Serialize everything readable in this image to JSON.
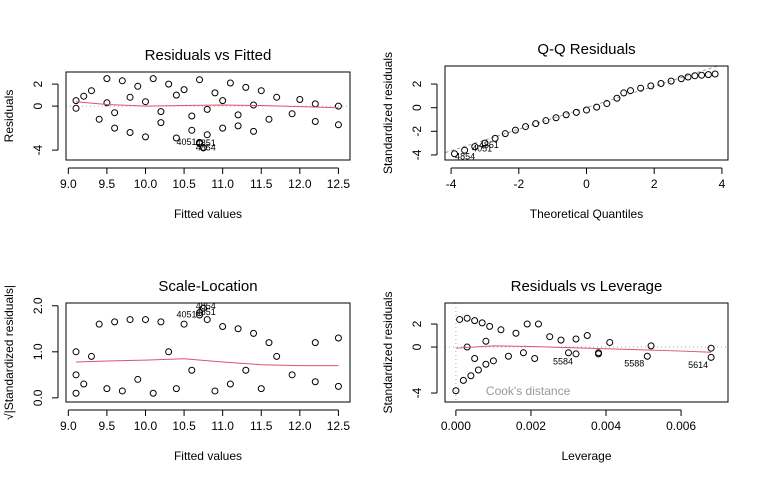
{
  "chart_data": [
    {
      "type": "scatter",
      "title": "Residuals vs Fitted",
      "xlabel": "Fitted values",
      "ylabel": "Residuals",
      "xlim": [
        8.97,
        12.65
      ],
      "ylim": [
        -4.9,
        3.1
      ],
      "xticks": [
        {
          "value": 9,
          "label": "9.0"
        },
        9.5,
        {
          "value": 10,
          "label": "10.0"
        },
        10.5,
        {
          "value": 11,
          "label": "11.0"
        },
        11.5,
        {
          "value": 12,
          "label": "12.0"
        },
        12.5
      ],
      "yticks": [
        -4,
        0,
        2
      ],
      "hline": 0,
      "points": {
        "x": [
          9.1,
          9.1,
          9.2,
          9.3,
          9.4,
          9.5,
          9.6,
          9.7,
          9.8,
          9.9,
          10.0,
          10.1,
          10.2,
          10.3,
          10.4,
          10.5,
          10.6,
          10.7,
          10.8,
          10.9,
          11.0,
          11.1,
          11.2,
          11.3,
          11.4,
          11.5,
          11.6,
          11.7,
          11.9,
          12.0,
          12.2,
          12.2,
          12.5,
          12.5,
          9.5,
          9.8,
          10.2,
          10.6,
          11.0,
          11.4,
          9.6,
          10.0,
          10.4,
          10.8,
          11.2,
          10.7,
          10.7,
          10.75
        ],
        "y": [
          0.5,
          -0.2,
          0.9,
          1.4,
          -1.2,
          2.5,
          -2.0,
          2.3,
          -2.4,
          1.8,
          -2.8,
          2.5,
          -1.5,
          2.0,
          -2.9,
          1.5,
          -2.2,
          2.4,
          -2.6,
          1.2,
          -2.0,
          2.1,
          -1.8,
          1.7,
          -2.3,
          1.4,
          -1.2,
          0.8,
          -0.7,
          0.6,
          0.2,
          -1.4,
          0.0,
          -1.7,
          0.3,
          0.8,
          -0.5,
          -0.9,
          0.5,
          0.1,
          -0.6,
          0.4,
          1.0,
          -0.3,
          -0.8,
          -3.3,
          -3.4,
          -3.8
        ]
      },
      "smooth": {
        "color": "#DF536B",
        "x": [
          9.1,
          9.5,
          10.0,
          10.5,
          11.0,
          11.5,
          12.0,
          12.5
        ],
        "y": [
          0.4,
          0.15,
          0.0,
          0.05,
          0.1,
          0.05,
          -0.05,
          -0.15
        ]
      },
      "point_labels": [
        {
          "text": "4051",
          "x": 10.7,
          "y": -3.3
        },
        {
          "text": "4851",
          "x": 10.95,
          "y": -3.4
        },
        {
          "text": "4854",
          "x": 10.95,
          "y": -3.8
        }
      ]
    },
    {
      "type": "scatter",
      "title": "Q-Q Residuals",
      "xlabel": "Theoretical Quantiles",
      "ylabel": "Standardized residuals",
      "xlim": [
        -4.18,
        4.18
      ],
      "ylim": [
        -4.43,
        3.53
      ],
      "xticks": [
        -4,
        -2,
        0,
        2,
        4
      ],
      "yticks": [
        -4,
        -2,
        0,
        2
      ],
      "reference_line": {
        "color": "#999999",
        "x": [
          -4.5,
          4.5
        ],
        "y": [
          -4.1,
          4.1
        ]
      },
      "points": {
        "x": [
          -3.9,
          -3.6,
          -3.3,
          -3.0,
          -2.7,
          -2.4,
          -2.1,
          -1.8,
          -1.5,
          -1.2,
          -0.9,
          -0.6,
          -0.3,
          0.0,
          0.3,
          0.6,
          0.9,
          1.1,
          1.3,
          1.6,
          1.9,
          2.2,
          2.5,
          2.8,
          3.0,
          3.2,
          3.4,
          3.6,
          3.8
        ],
        "y": [
          -3.9,
          -3.6,
          -3.3,
          -3.0,
          -2.6,
          -2.2,
          -1.9,
          -1.6,
          -1.35,
          -1.1,
          -0.85,
          -0.6,
          -0.4,
          -0.2,
          0.05,
          0.35,
          0.8,
          1.25,
          1.45,
          1.65,
          1.85,
          2.05,
          2.25,
          2.45,
          2.6,
          2.7,
          2.75,
          2.8,
          2.85
        ]
      },
      "point_labels": [
        {
          "text": "4854",
          "x": -3.2,
          "y": -4.2
        },
        {
          "text": "4051",
          "x": -2.7,
          "y": -3.5
        },
        {
          "text": "4851",
          "x": -2.5,
          "y": -3.2
        }
      ]
    },
    {
      "type": "scatter",
      "title": "Scale-Location",
      "xlabel": "Fitted values",
      "ylabel": "√|Standardized residuals|",
      "xlim": [
        8.97,
        12.65
      ],
      "ylim": [
        -0.09,
        2.06
      ],
      "xticks": [
        {
          "value": 9,
          "label": "9.0"
        },
        9.5,
        {
          "value": 10,
          "label": "10.0"
        },
        10.5,
        {
          "value": 11,
          "label": "11.0"
        },
        11.5,
        {
          "value": 12,
          "label": "12.0"
        },
        12.5
      ],
      "yticks": [
        {
          "value": 0,
          "label": "0.0"
        },
        {
          "value": 1,
          "label": "1.0"
        },
        {
          "value": 2,
          "label": "2.0"
        }
      ],
      "points": {
        "x": [
          9.1,
          9.1,
          9.1,
          9.2,
          9.3,
          9.4,
          9.5,
          9.6,
          9.7,
          9.8,
          9.9,
          10.0,
          10.1,
          10.2,
          10.3,
          10.4,
          10.5,
          10.6,
          10.8,
          10.9,
          11.0,
          11.1,
          11.2,
          11.3,
          11.4,
          11.5,
          11.6,
          11.7,
          11.9,
          12.2,
          12.2,
          12.5,
          12.5,
          10.7,
          10.7,
          10.75
        ],
        "y": [
          0.1,
          0.5,
          1.0,
          0.3,
          0.9,
          1.6,
          0.2,
          1.65,
          0.15,
          1.7,
          0.4,
          1.7,
          0.1,
          1.65,
          1.0,
          0.2,
          1.6,
          0.6,
          1.7,
          0.15,
          1.55,
          0.3,
          1.5,
          0.6,
          1.4,
          0.2,
          1.2,
          0.9,
          0.5,
          1.2,
          0.35,
          1.3,
          0.25,
          1.8,
          1.85,
          1.95
        ]
      },
      "smooth": {
        "color": "#DF536B",
        "x": [
          9.1,
          9.5,
          10.0,
          10.5,
          11.0,
          11.5,
          12.0,
          12.5
        ],
        "y": [
          0.78,
          0.8,
          0.82,
          0.85,
          0.78,
          0.72,
          0.7,
          0.7
        ]
      },
      "point_labels": [
        {
          "text": "4051",
          "x": 10.7,
          "y": 1.8
        },
        {
          "text": "4851",
          "x": 10.95,
          "y": 1.85
        },
        {
          "text": "4854",
          "x": 10.95,
          "y": 1.98
        }
      ]
    },
    {
      "type": "scatter",
      "title": "Residuals vs Leverage",
      "xlabel": "Leverage",
      "ylabel": "Standardized residuals",
      "xlim": [
        -0.00029,
        0.00725
      ],
      "ylim": [
        -4.78,
        3.83
      ],
      "xticks": [
        {
          "value": 0,
          "label": "0.000"
        },
        {
          "value": 0.002,
          "label": "0.002"
        },
        {
          "value": 0.004,
          "label": "0.004"
        },
        {
          "value": 0.006,
          "label": "0.006"
        }
      ],
      "yticks": [
        -4,
        0,
        2
      ],
      "hline": 0,
      "vline": 0,
      "points": {
        "x": [
          0.0,
          0.0001,
          0.0002,
          0.0003,
          0.0004,
          0.0005,
          0.0006,
          0.0007,
          0.0008,
          0.0009,
          0.001,
          0.0012,
          0.0014,
          0.0016,
          0.0018,
          0.0019,
          0.0021,
          0.0022,
          0.0025,
          0.0028,
          0.003,
          0.0032,
          0.0035,
          0.0038,
          0.0041,
          0.0051,
          0.0052,
          0.0068,
          0.0068,
          0.0003,
          0.0005,
          0.0008,
          0.0032,
          0.0038
        ],
        "y": [
          -3.8,
          2.4,
          -2.9,
          2.5,
          -2.5,
          2.3,
          -2.0,
          2.1,
          -1.5,
          1.8,
          -1.2,
          1.5,
          -0.8,
          1.2,
          -0.5,
          2.0,
          -1.0,
          2.0,
          0.9,
          0.6,
          -0.5,
          0.7,
          1.0,
          -0.6,
          0.4,
          -0.8,
          0.1,
          -0.1,
          -0.9,
          0.0,
          -1.0,
          0.5,
          -0.6,
          -0.5
        ]
      },
      "smooth": {
        "color": "#DF536B",
        "x": [
          0.0,
          0.001,
          0.002,
          0.003,
          0.004,
          0.005,
          0.006,
          0.0068
        ],
        "y": [
          -0.1,
          0.1,
          0.05,
          -0.05,
          -0.15,
          -0.25,
          -0.35,
          -0.45
        ]
      },
      "point_labels": [
        {
          "text": "5584",
          "x": 0.0032,
          "y": -1.3
        },
        {
          "text": "5588",
          "x": 0.0051,
          "y": -1.5
        },
        {
          "text": "5614",
          "x": 0.0068,
          "y": -1.6
        }
      ],
      "annotation": {
        "text": "Cook's distance",
        "color": "#999999",
        "x": 0.0008,
        "y": -3.9
      }
    }
  ]
}
